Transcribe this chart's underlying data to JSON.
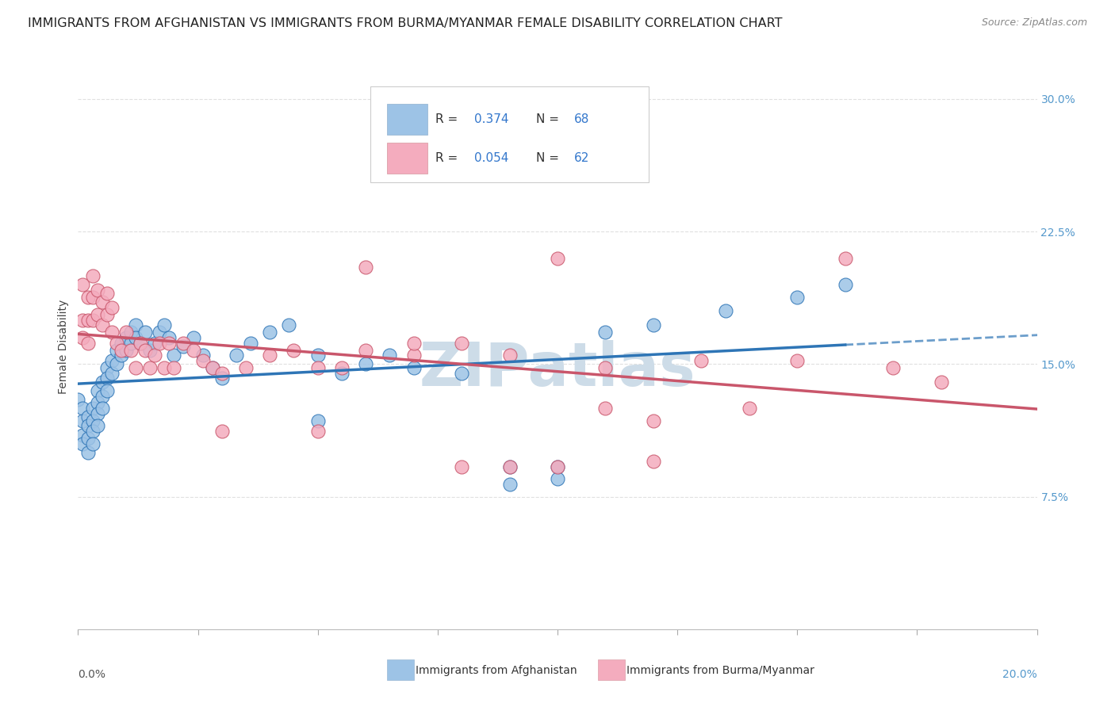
{
  "title": "IMMIGRANTS FROM AFGHANISTAN VS IMMIGRANTS FROM BURMA/MYANMAR FEMALE DISABILITY CORRELATION CHART",
  "source": "Source: ZipAtlas.com",
  "ylabel": "Female Disability",
  "xlim": [
    0.0,
    0.2
  ],
  "ylim": [
    0.0,
    0.32
  ],
  "ytick_vals": [
    0.075,
    0.15,
    0.225,
    0.3
  ],
  "ytick_labels": [
    "7.5%",
    "15.0%",
    "22.5%",
    "30.0%"
  ],
  "legend_R1": "0.374",
  "legend_N1": "68",
  "legend_R2": "0.054",
  "legend_N2": "62",
  "color_afghanistan": "#9dc3e6",
  "color_burma": "#f4acbe",
  "line_afghanistan": "#2e75b6",
  "line_burma": "#c9566b",
  "afghanistan_x": [
    0.0,
    0.001,
    0.001,
    0.001,
    0.001,
    0.002,
    0.002,
    0.002,
    0.002,
    0.003,
    0.003,
    0.003,
    0.003,
    0.004,
    0.004,
    0.004,
    0.004,
    0.005,
    0.005,
    0.005,
    0.006,
    0.006,
    0.006,
    0.007,
    0.007,
    0.008,
    0.008,
    0.009,
    0.009,
    0.01,
    0.01,
    0.011,
    0.011,
    0.012,
    0.012,
    0.013,
    0.014,
    0.015,
    0.016,
    0.017,
    0.018,
    0.019,
    0.02,
    0.022,
    0.024,
    0.026,
    0.028,
    0.03,
    0.033,
    0.036,
    0.04,
    0.044,
    0.05,
    0.055,
    0.06,
    0.065,
    0.07,
    0.08,
    0.09,
    0.1,
    0.11,
    0.12,
    0.135,
    0.15,
    0.16,
    0.1,
    0.09,
    0.05
  ],
  "afghanistan_y": [
    0.13,
    0.125,
    0.118,
    0.11,
    0.105,
    0.12,
    0.115,
    0.108,
    0.1,
    0.125,
    0.118,
    0.112,
    0.105,
    0.135,
    0.128,
    0.122,
    0.115,
    0.14,
    0.132,
    0.125,
    0.148,
    0.142,
    0.135,
    0.152,
    0.145,
    0.158,
    0.15,
    0.162,
    0.155,
    0.165,
    0.158,
    0.168,
    0.162,
    0.172,
    0.165,
    0.162,
    0.168,
    0.158,
    0.162,
    0.168,
    0.172,
    0.165,
    0.155,
    0.16,
    0.165,
    0.155,
    0.148,
    0.142,
    0.155,
    0.162,
    0.168,
    0.172,
    0.155,
    0.145,
    0.15,
    0.155,
    0.148,
    0.145,
    0.092,
    0.092,
    0.168,
    0.172,
    0.18,
    0.188,
    0.195,
    0.085,
    0.082,
    0.118
  ],
  "burma_x": [
    0.001,
    0.001,
    0.001,
    0.002,
    0.002,
    0.002,
    0.003,
    0.003,
    0.003,
    0.004,
    0.004,
    0.005,
    0.005,
    0.006,
    0.006,
    0.007,
    0.007,
    0.008,
    0.009,
    0.01,
    0.011,
    0.012,
    0.013,
    0.014,
    0.015,
    0.016,
    0.017,
    0.018,
    0.019,
    0.02,
    0.022,
    0.024,
    0.026,
    0.028,
    0.03,
    0.035,
    0.04,
    0.045,
    0.05,
    0.055,
    0.06,
    0.07,
    0.08,
    0.09,
    0.1,
    0.11,
    0.12,
    0.13,
    0.14,
    0.15,
    0.16,
    0.17,
    0.18,
    0.06,
    0.08,
    0.1,
    0.12,
    0.03,
    0.05,
    0.07,
    0.09,
    0.11
  ],
  "burma_y": [
    0.195,
    0.175,
    0.165,
    0.188,
    0.175,
    0.162,
    0.2,
    0.188,
    0.175,
    0.192,
    0.178,
    0.185,
    0.172,
    0.19,
    0.178,
    0.182,
    0.168,
    0.162,
    0.158,
    0.168,
    0.158,
    0.148,
    0.162,
    0.158,
    0.148,
    0.155,
    0.162,
    0.148,
    0.162,
    0.148,
    0.162,
    0.158,
    0.152,
    0.148,
    0.145,
    0.148,
    0.155,
    0.158,
    0.148,
    0.148,
    0.158,
    0.155,
    0.162,
    0.155,
    0.092,
    0.148,
    0.118,
    0.152,
    0.125,
    0.152,
    0.21,
    0.148,
    0.14,
    0.205,
    0.092,
    0.21,
    0.095,
    0.112,
    0.112,
    0.162,
    0.092,
    0.125
  ],
  "background_color": "#ffffff",
  "grid_color": "#e0e0e0",
  "title_fontsize": 11.5,
  "axis_label_fontsize": 10,
  "tick_fontsize": 10,
  "watermark": "ZIPatlas",
  "watermark_color": "#cddce8",
  "watermark_fontsize": 55
}
